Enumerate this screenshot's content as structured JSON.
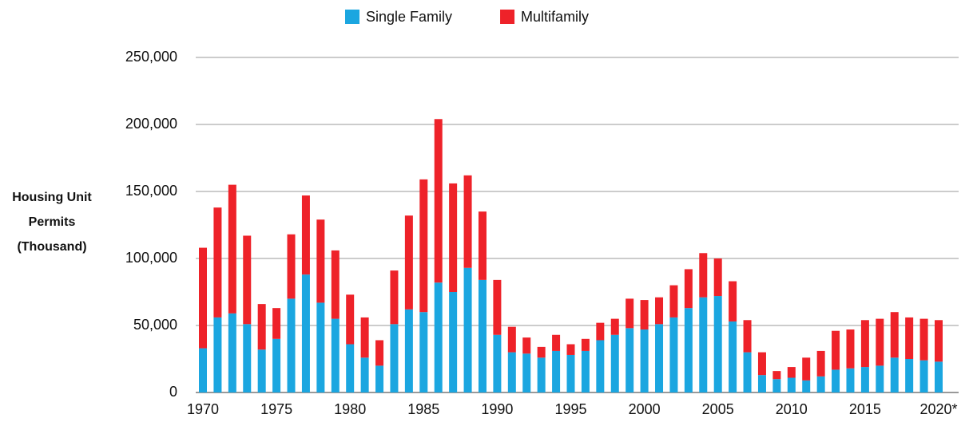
{
  "chart_data": {
    "type": "stacked_bar",
    "y_label": "Housing Unit Permits (Thousand)",
    "categories": [
      "1970",
      null,
      null,
      null,
      null,
      "1975",
      null,
      null,
      null,
      null,
      "1980",
      null,
      null,
      null,
      null,
      "1985",
      null,
      null,
      null,
      null,
      "1990",
      null,
      null,
      null,
      null,
      "1995",
      null,
      null,
      null,
      null,
      "2000",
      null,
      null,
      null,
      null,
      "2005",
      null,
      null,
      null,
      null,
      "2010",
      null,
      null,
      null,
      null,
      "2015",
      null,
      null,
      null,
      null,
      "2020*"
    ],
    "series": [
      {
        "name": "Single Family",
        "color": "#1ba6e0",
        "values": [
          33000,
          56000,
          59000,
          51000,
          32000,
          40000,
          70000,
          88000,
          67000,
          55000,
          36000,
          26000,
          20000,
          51000,
          62000,
          60000,
          82000,
          75000,
          93000,
          84000,
          43000,
          30000,
          29000,
          26000,
          31000,
          28000,
          31000,
          39000,
          43000,
          48000,
          47000,
          51000,
          56000,
          63000,
          71000,
          72000,
          53000,
          30000,
          13000,
          10000,
          11000,
          9000,
          12000,
          17000,
          18000,
          19000,
          20000,
          26000,
          25000,
          24000,
          23000
        ]
      },
      {
        "name": "Multifamily",
        "color": "#ee2229",
        "values": [
          75000,
          82000,
          96000,
          66000,
          34000,
          23000,
          48000,
          59000,
          62000,
          51000,
          37000,
          30000,
          19000,
          40000,
          70000,
          99000,
          122000,
          81000,
          69000,
          51000,
          41000,
          19000,
          12000,
          8000,
          12000,
          8000,
          9000,
          13000,
          12000,
          22000,
          22000,
          20000,
          24000,
          29000,
          33000,
          28000,
          30000,
          24000,
          17000,
          6000,
          8000,
          17000,
          19000,
          29000,
          29000,
          35000,
          35000,
          34000,
          31000,
          31000,
          31000
        ]
      }
    ],
    "ylim": [
      0,
      250000
    ],
    "yticks": [
      0,
      {
        "value": 50000,
        "label": "50,000"
      },
      {
        "value": 100000,
        "label": "100,000"
      },
      {
        "value": 150000,
        "label": "150,000"
      },
      {
        "value": 200000,
        "label": "200,000"
      },
      {
        "value": 250000,
        "label": "250,000"
      }
    ],
    "grid": true,
    "legend": "top"
  }
}
